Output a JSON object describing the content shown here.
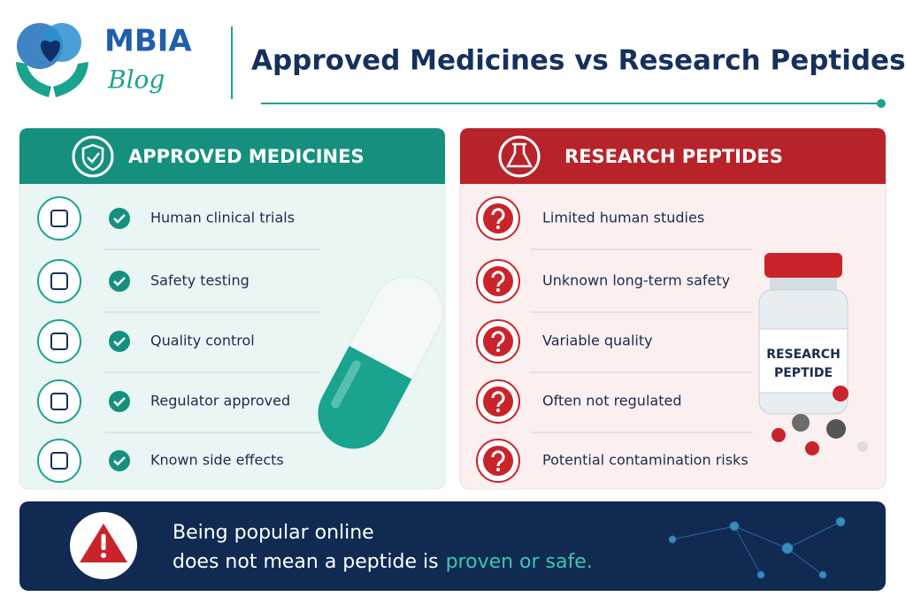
{
  "logo": {
    "name": "MBIA",
    "sub": "Blog"
  },
  "header": {
    "title": "Approved Medicines vs Research Peptides"
  },
  "approved": {
    "title": "APPROVED MEDICINES",
    "items": [
      "Human clinical trials",
      "Safety testing",
      "Quality control",
      "Regulator approved",
      "Known side effects"
    ]
  },
  "research": {
    "title": "RESEARCH PEPTIDES",
    "items": [
      "Limited human studies",
      "Unknown long-term safety",
      "Variable quality",
      "Often not regulated",
      "Potential contamination risks"
    ],
    "vial_label": [
      "RESEARCH",
      "PEPTIDE"
    ]
  },
  "footer": {
    "line1": "Being popular online",
    "line2": "does not mean a peptide is",
    "highlight": "proven or safe."
  }
}
